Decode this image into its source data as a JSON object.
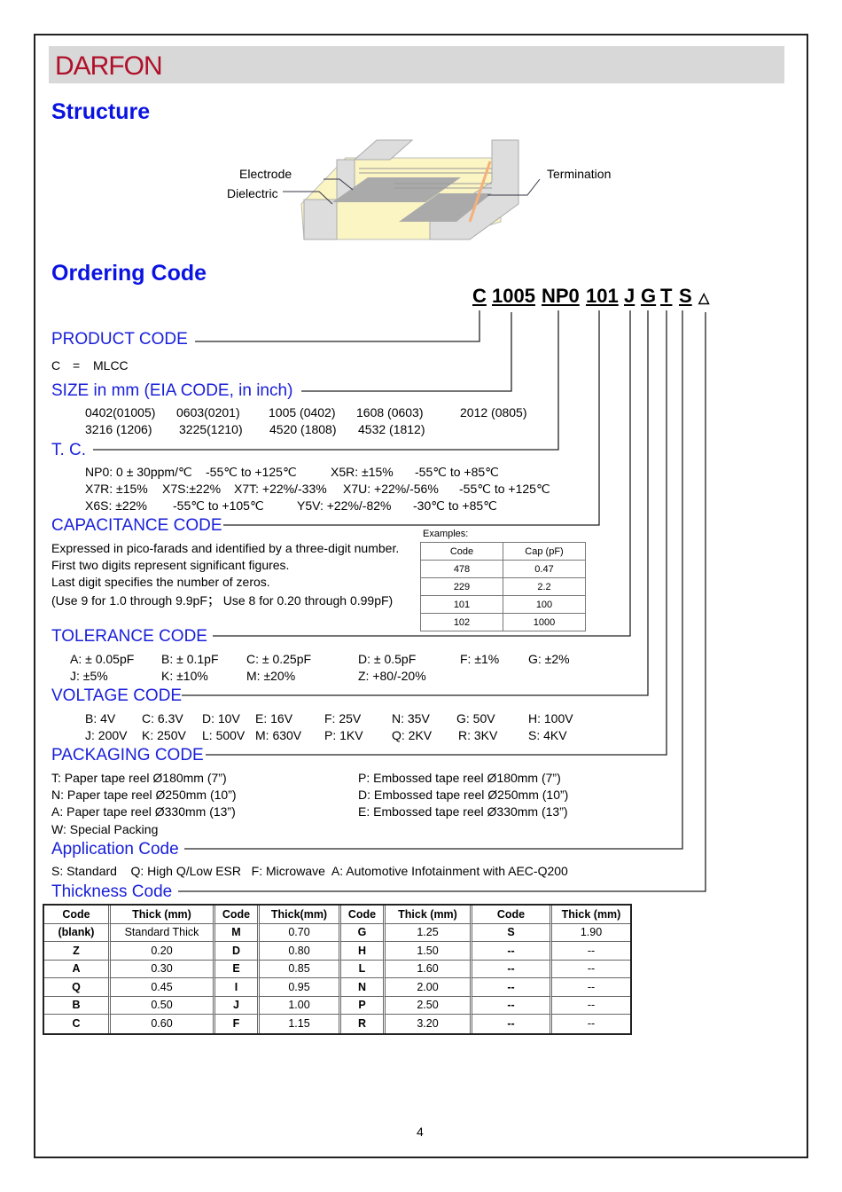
{
  "header": {
    "logo": "DARFON",
    "brand_color": "#b0102a"
  },
  "structure": {
    "title": "Structure",
    "labels": {
      "electrode": "Electrode",
      "dielectric": "Dielectric",
      "termination": "Termination"
    }
  },
  "ordering": {
    "title": "Ordering Code",
    "code_parts": [
      "C",
      "1005",
      "NP0",
      "101",
      "J",
      "G",
      "T",
      "S",
      "△"
    ]
  },
  "product": {
    "title": "PRODUCT CODE",
    "c": "C",
    "eq": "=",
    "mlcc": "MLCC"
  },
  "size": {
    "title": "SIZE in mm (EIA CODE, in inch)",
    "row1": [
      "0402(01005)",
      "0603(0201)",
      "1005 (0402)",
      "1608 (0603)",
      "2012 (0805)"
    ],
    "row2": [
      "3216 (1206)",
      "3225(1210)",
      "4520 (1808)",
      "4532 (1812)"
    ]
  },
  "tc": {
    "title": "T. C.",
    "lines": [
      [
        "NP0: 0 ± 30ppm/℃",
        "-55℃  to +125℃",
        "X5R: ±15%",
        "-55℃  to +85℃"
      ],
      [
        "X7R: ±15%",
        "X7S:±22%",
        "X7T: +22%/-33%",
        "X7U: +22%/-56%",
        "-55℃  to +125℃"
      ],
      [
        "X6S: ±22%",
        "-55℃  to +105℃",
        "Y5V: +22%/-82%",
        "-30℃  to +85℃"
      ]
    ]
  },
  "capacitance": {
    "title": "CAPACITANCE CODE",
    "lines": [
      "Expressed in pico-farads and identified by a three-digit number.",
      "First two digits represent significant figures.",
      "Last digit specifies the number of zeros.",
      "(Use 9 for 1.0 through 9.9pF；  Use 8 for 0.20 through 0.99pF)"
    ],
    "examples_label": "Examples:",
    "examples_header": [
      "Code",
      "Cap (pF)"
    ],
    "examples": [
      [
        "478",
        "0.47"
      ],
      [
        "229",
        "2.2"
      ],
      [
        "101",
        "100"
      ],
      [
        "102",
        "1000"
      ]
    ]
  },
  "tolerance": {
    "title": "TOLERANCE CODE",
    "row1": [
      "A: ± 0.05pF",
      "B: ± 0.1pF",
      "C: ± 0.25pF",
      "D: ± 0.5pF",
      "F: ±1%",
      "G: ±2%"
    ],
    "row2": [
      "J: ±5%",
      "K: ±10%",
      "M: ±20%",
      "Z: +80/-20%"
    ]
  },
  "voltage": {
    "title": "VOLTAGE CODE",
    "row1": [
      "B: 4V",
      "C: 6.3V",
      "D: 10V",
      "E: 16V",
      "F: 25V",
      "N: 35V",
      "G: 50V",
      "H: 100V"
    ],
    "row2": [
      "J: 200V",
      "K: 250V",
      "L: 500V",
      "M: 630V",
      "P: 1KV",
      "Q: 2KV",
      "R: 3KV",
      "S: 4KV"
    ]
  },
  "packaging": {
    "title": "PACKAGING CODE",
    "left": [
      "T: Paper tape reel Ø180mm (7”)",
      "N: Paper tape reel Ø250mm (10”)",
      "A: Paper tape reel Ø330mm (13”)",
      "W: Special Packing"
    ],
    "right": [
      "P: Embossed tape reel Ø180mm (7”)",
      "D: Embossed tape reel Ø250mm (10”)",
      "E: Embossed tape reel Ø330mm (13”)"
    ]
  },
  "application": {
    "title": "Application Code",
    "text": "S: Standard    Q: High Q/Low ESR   F: Microwave  A: Automotive Infotainment with AEC-Q200"
  },
  "thickness": {
    "title": "Thickness Code",
    "header": [
      "Code",
      "Thick (mm)",
      "Code",
      "Thick(mm)",
      "Code",
      "Thick (mm)",
      "Code",
      "Thick (mm)"
    ],
    "rows": [
      [
        "(blank)",
        "Standard Thick",
        "M",
        "0.70",
        "G",
        "1.25",
        "S",
        "1.90"
      ],
      [
        "Z",
        "0.20",
        "D",
        "0.80",
        "H",
        "1.50",
        "--",
        "--"
      ],
      [
        "A",
        "0.30",
        "E",
        "0.85",
        "L",
        "1.60",
        "--",
        "--"
      ],
      [
        "Q",
        "0.45",
        "I",
        "0.95",
        "N",
        "2.00",
        "--",
        "--"
      ],
      [
        "B",
        "0.50",
        "J",
        "1.00",
        "P",
        "2.50",
        "--",
        "--"
      ],
      [
        "C",
        "0.60",
        "F",
        "1.15",
        "R",
        "3.20",
        "--",
        "--"
      ]
    ]
  },
  "page_number": "4"
}
